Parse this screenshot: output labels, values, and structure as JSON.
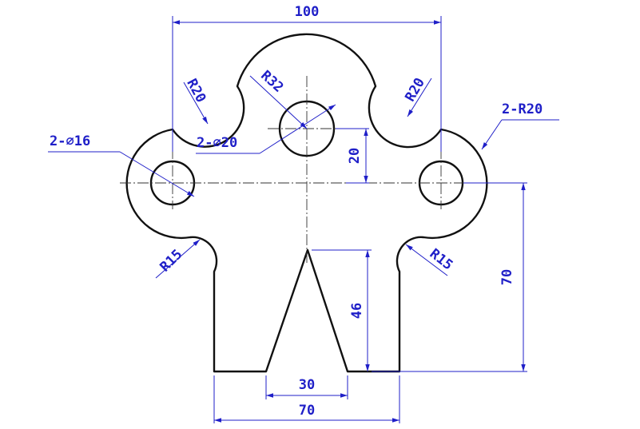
{
  "colors": {
    "outline": "#111111",
    "dimension": "#1f1fc8",
    "centerline": "#333333"
  },
  "dimensions": {
    "overall_width": "100",
    "bottom_width": "70",
    "slot_width": "30",
    "slot_depth": "46",
    "hole_height": "70",
    "top_hole_offset": "20",
    "top_radius": "R32",
    "fillet_top_left": "R20",
    "fillet_top_right": "R20",
    "side_radius": "2-R20",
    "fillet_bottom_left": "R15",
    "fillet_bottom_right": "R15",
    "side_holes": "2-∅16",
    "top_hole": "2-∅20"
  }
}
